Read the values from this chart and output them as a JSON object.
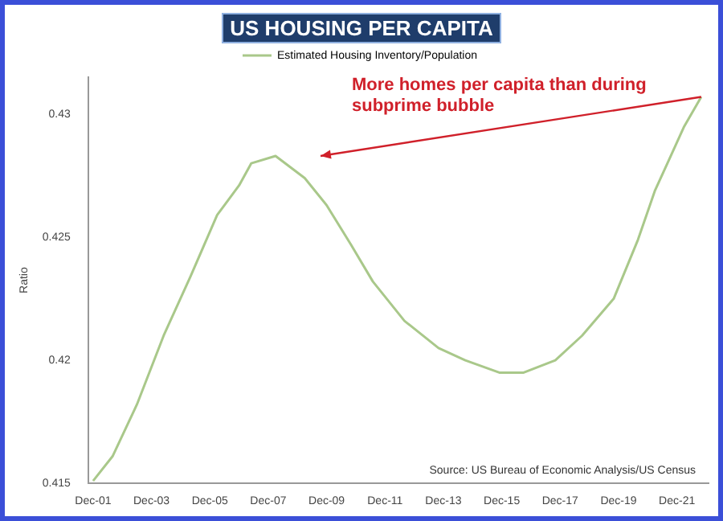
{
  "chart_data": {
    "type": "line",
    "title": "US HOUSING PER CAPITA",
    "ylabel": "Ratio",
    "x": [
      "2001-12",
      "2002-08",
      "2003-06",
      "2004-05",
      "2005-04",
      "2006-03",
      "2006-12",
      "2007-05",
      "2008-03",
      "2009-03",
      "2009-12",
      "2010-10",
      "2011-07",
      "2012-08",
      "2013-10",
      "2014-09",
      "2015-11",
      "2016-09",
      "2017-10",
      "2018-09",
      "2019-10",
      "2020-08",
      "2021-03",
      "2021-09",
      "2022-03",
      "2022-10"
    ],
    "series": [
      {
        "name": "Estimated Housing Inventory/Population",
        "color": "#a9c88a",
        "values": [
          0.4151,
          0.4161,
          0.4182,
          0.421,
          0.4234,
          0.4259,
          0.4271,
          0.428,
          0.4283,
          0.4274,
          0.4263,
          0.4247,
          0.4232,
          0.4216,
          0.4205,
          0.42,
          0.4195,
          0.4195,
          0.42,
          0.421,
          0.4225,
          0.4249,
          0.4269,
          0.4282,
          0.4295,
          0.4307
        ]
      }
    ],
    "xlim": [
      "2001-10",
      "2023-01"
    ],
    "xticks": [
      {
        "value": "2001-12",
        "label": "Dec-01"
      },
      {
        "value": "2003-12",
        "label": "Dec-03"
      },
      {
        "value": "2005-12",
        "label": "Dec-05"
      },
      {
        "value": "2007-12",
        "label": "Dec-07"
      },
      {
        "value": "2009-12",
        "label": "Dec-09"
      },
      {
        "value": "2011-12",
        "label": "Dec-11"
      },
      {
        "value": "2013-12",
        "label": "Dec-13"
      },
      {
        "value": "2015-12",
        "label": "Dec-15"
      },
      {
        "value": "2017-12",
        "label": "Dec-17"
      },
      {
        "value": "2019-12",
        "label": "Dec-19"
      },
      {
        "value": "2021-12",
        "label": "Dec-21"
      }
    ],
    "ylim": [
      0.415,
      0.4315
    ],
    "yticks": [
      0.415,
      0.42,
      0.425,
      0.43
    ],
    "annotations": [
      "More homes per capita than during subprime bubble",
      "Source: US Bureau of Economic Analysis/US Census"
    ],
    "grid": false,
    "legend": "top",
    "marker": "none",
    "line_style": "solid"
  }
}
